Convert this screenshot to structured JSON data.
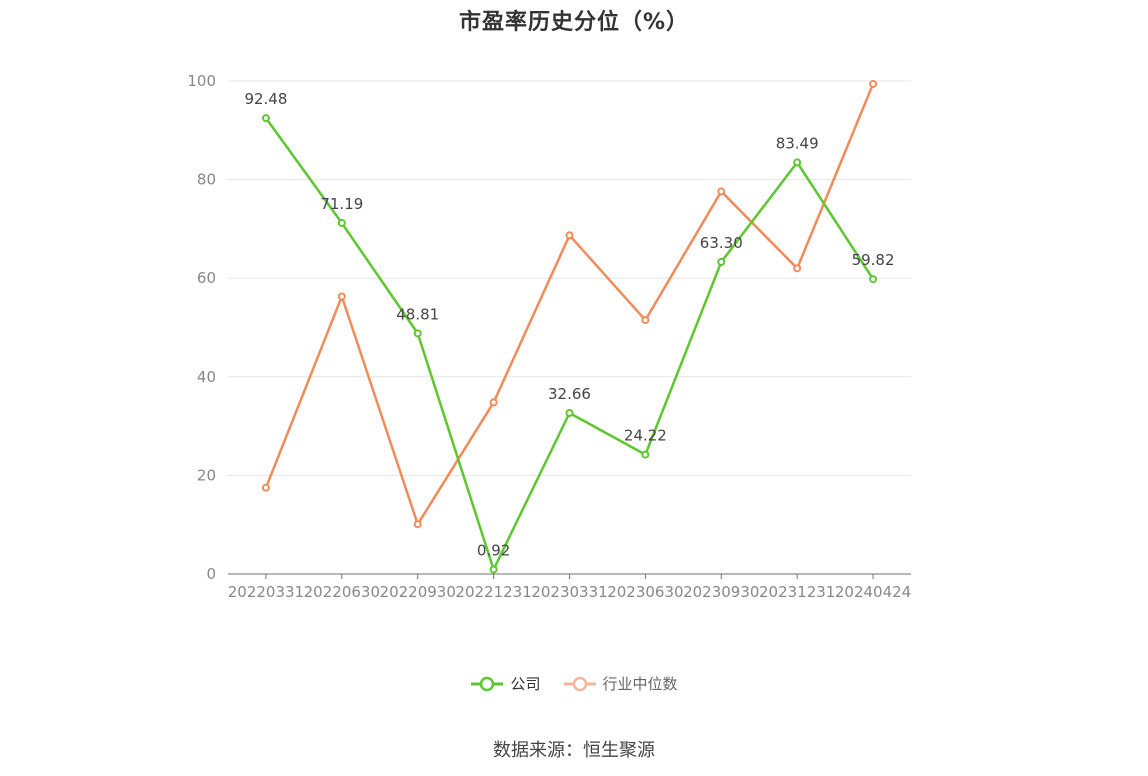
{
  "chart_data": {
    "type": "line",
    "title": "市盈率历史分位（%）",
    "x": [
      "20220331",
      "20220630",
      "20220930",
      "20221231",
      "20230331",
      "20230630",
      "20230930",
      "20231231",
      "20240424"
    ],
    "ylim": [
      0,
      100
    ],
    "yticks": [
      0,
      20,
      40,
      60,
      80,
      100
    ],
    "grid": true,
    "legend_position": "bottom",
    "series": [
      {
        "name": "公司",
        "color": "#5cc72e",
        "values": [
          92.48,
          71.19,
          48.81,
          0.92,
          32.66,
          24.22,
          63.3,
          83.49,
          59.82
        ],
        "labels": [
          "92.48",
          "71.19",
          "48.81",
          "0.92",
          "32.66",
          "24.22",
          "63.30",
          "83.49",
          "59.82"
        ]
      },
      {
        "name": "行业中位数",
        "color": "#f28b5a",
        "values": [
          17.5,
          56.3,
          10.1,
          34.8,
          68.7,
          51.5,
          77.6,
          62.0,
          99.4
        ]
      }
    ]
  },
  "footer": {
    "source": "数据来源：恒生聚源"
  }
}
